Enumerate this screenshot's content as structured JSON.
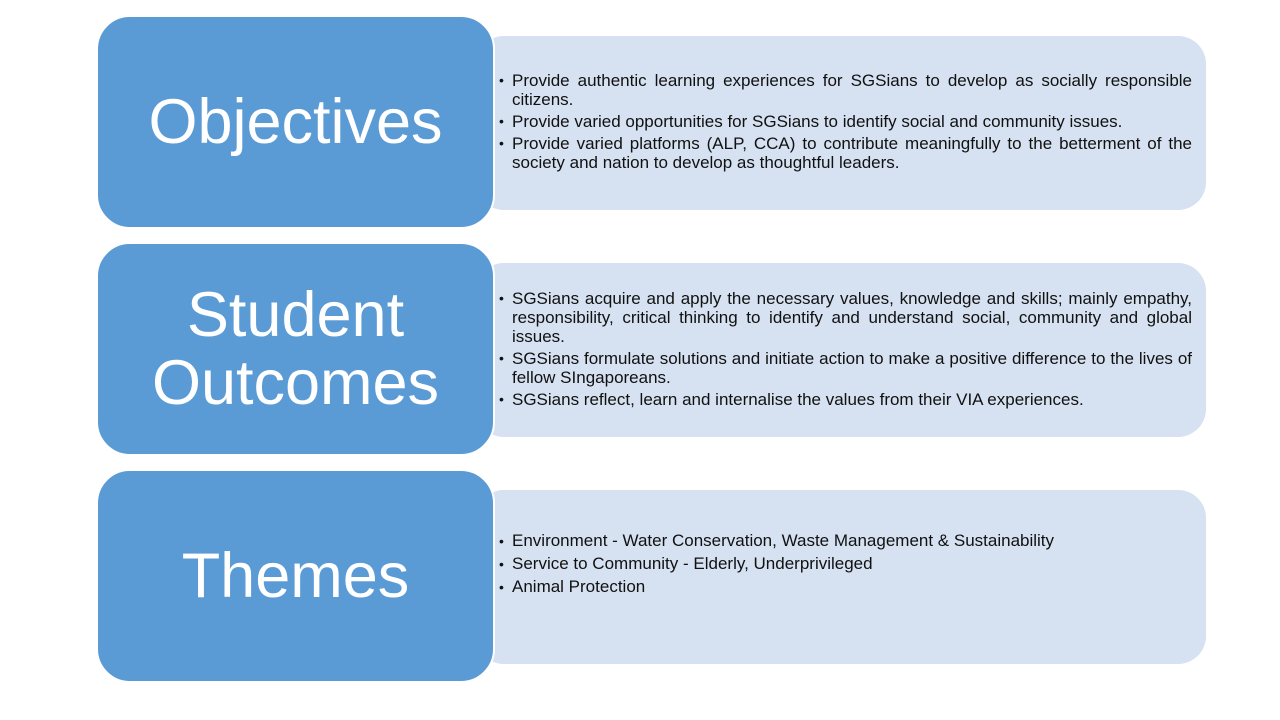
{
  "colors": {
    "heading_fill": "#5b9bd5",
    "detail_fill": "#d6e1f1",
    "heading_text": "#ffffff",
    "body_text": "#111111"
  },
  "sections": [
    {
      "heading": "Objectives",
      "bullets": [
        "Provide authentic learning experiences for SGSians to develop as socially responsible citizens.",
        "Provide varied opportunities for SGSians to identify social and community issues.",
        "Provide varied platforms (ALP, CCA) to contribute meaningfully to the betterment of the society and nation to develop as thoughtful leaders."
      ]
    },
    {
      "heading_line1": "Student",
      "heading_line2": "Outcomes",
      "bullets": [
        "SGSians acquire and apply the necessary values, knowledge and skills; mainly empathy, responsibility, critical thinking to identify and understand social, community and  global issues.",
        "SGSians formulate solutions and initiate action to make a positive difference to the lives of fellow SIngaporeans.",
        "SGSians reflect, learn and internalise the values from their VIA experiences."
      ]
    },
    {
      "heading": "Themes",
      "bullets": [
        "Environment - Water Conservation, Waste Management & Sustainability",
        "Service to Community -  Elderly, Underprivileged",
        "Animal Protection"
      ]
    }
  ]
}
